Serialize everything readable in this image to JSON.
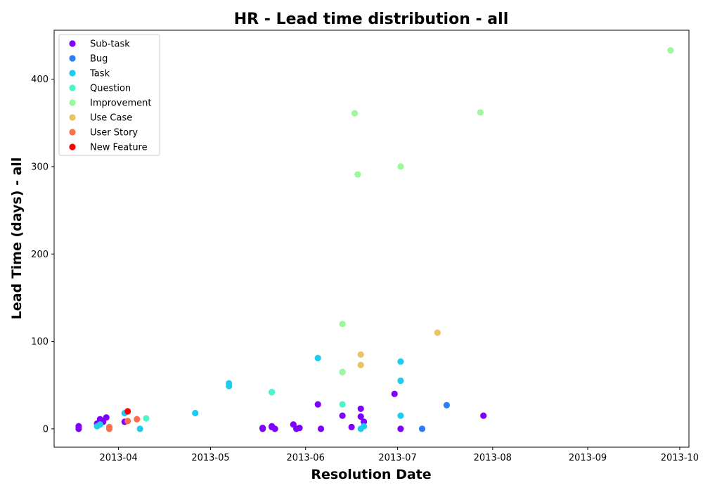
{
  "chart_data": {
    "type": "scatter",
    "title": "HR - Lead time distribution - all",
    "xlabel": "Resolution Date",
    "ylabel": "Lead Time (days) - all",
    "x_type": "date",
    "xlim": [
      "2013-03-11",
      "2013-10-04"
    ],
    "ylim": [
      -21,
      456
    ],
    "x_ticks": [
      "2013-04-01",
      "2013-05-01",
      "2013-06-01",
      "2013-07-01",
      "2013-08-01",
      "2013-09-01",
      "2013-10-01"
    ],
    "x_tick_labels": [
      "2013-04",
      "2013-05",
      "2013-06",
      "2013-07",
      "2013-08",
      "2013-09",
      "2013-10"
    ],
    "y_ticks": [
      0,
      100,
      200,
      300,
      400
    ],
    "y_tick_labels": [
      "0",
      "100",
      "200",
      "300",
      "400"
    ],
    "grid": false,
    "legend_position": "top-left",
    "series": [
      {
        "name": "Sub-task",
        "color": "#8000ff",
        "points": [
          {
            "x": "2013-03-19",
            "y": 0
          },
          {
            "x": "2013-03-19",
            "y": 3
          },
          {
            "x": "2013-03-25",
            "y": 6
          },
          {
            "x": "2013-03-26",
            "y": 11
          },
          {
            "x": "2013-03-27",
            "y": 8
          },
          {
            "x": "2013-03-28",
            "y": 13
          },
          {
            "x": "2013-04-03",
            "y": 8
          },
          {
            "x": "2013-05-18",
            "y": 0
          },
          {
            "x": "2013-05-18",
            "y": 1
          },
          {
            "x": "2013-05-21",
            "y": 3
          },
          {
            "x": "2013-05-21",
            "y": 2
          },
          {
            "x": "2013-05-22",
            "y": 0
          },
          {
            "x": "2013-05-28",
            "y": 5
          },
          {
            "x": "2013-05-29",
            "y": 0
          },
          {
            "x": "2013-05-30",
            "y": 1
          },
          {
            "x": "2013-06-05",
            "y": 28
          },
          {
            "x": "2013-06-06",
            "y": 0
          },
          {
            "x": "2013-06-13",
            "y": 15
          },
          {
            "x": "2013-06-16",
            "y": 2
          },
          {
            "x": "2013-06-19",
            "y": 23
          },
          {
            "x": "2013-06-19",
            "y": 14
          },
          {
            "x": "2013-06-20",
            "y": 8
          },
          {
            "x": "2013-06-30",
            "y": 40
          },
          {
            "x": "2013-07-02",
            "y": 0
          },
          {
            "x": "2013-07-29",
            "y": 15
          }
        ]
      },
      {
        "name": "Bug",
        "color": "#2c7ef7",
        "points": [
          {
            "x": "2013-07-09",
            "y": 0
          },
          {
            "x": "2013-07-17",
            "y": 27
          }
        ]
      },
      {
        "name": "Task",
        "color": "#1ccdef",
        "points": [
          {
            "x": "2013-03-25",
            "y": 3
          },
          {
            "x": "2013-03-26",
            "y": 5
          },
          {
            "x": "2013-04-03",
            "y": 18
          },
          {
            "x": "2013-04-08",
            "y": 0
          },
          {
            "x": "2013-04-26",
            "y": 18
          },
          {
            "x": "2013-05-07",
            "y": 52
          },
          {
            "x": "2013-05-07",
            "y": 49
          },
          {
            "x": "2013-05-21",
            "y": 42
          },
          {
            "x": "2013-06-05",
            "y": 81
          },
          {
            "x": "2013-06-13",
            "y": 65
          },
          {
            "x": "2013-06-19",
            "y": 0
          },
          {
            "x": "2013-06-20",
            "y": 3
          },
          {
            "x": "2013-07-02",
            "y": 77
          },
          {
            "x": "2013-07-02",
            "y": 55
          },
          {
            "x": "2013-07-02",
            "y": 15
          }
        ]
      },
      {
        "name": "Question",
        "color": "#4df6c8",
        "points": [
          {
            "x": "2013-04-10",
            "y": 12
          },
          {
            "x": "2013-05-21",
            "y": 42
          },
          {
            "x": "2013-06-13",
            "y": 28
          }
        ]
      },
      {
        "name": "Improvement",
        "color": "#9cf89b",
        "points": [
          {
            "x": "2013-06-13",
            "y": 120
          },
          {
            "x": "2013-06-13",
            "y": 65
          },
          {
            "x": "2013-06-17",
            "y": 361
          },
          {
            "x": "2013-06-18",
            "y": 291
          },
          {
            "x": "2013-07-02",
            "y": 300
          },
          {
            "x": "2013-07-28",
            "y": 362
          },
          {
            "x": "2013-09-28",
            "y": 433
          }
        ]
      },
      {
        "name": "Use Case",
        "color": "#eac365",
        "points": [
          {
            "x": "2013-06-19",
            "y": 85
          },
          {
            "x": "2013-06-19",
            "y": 73
          },
          {
            "x": "2013-07-14",
            "y": 110
          }
        ]
      },
      {
        "name": "User Story",
        "color": "#fe6e4c",
        "points": [
          {
            "x": "2013-03-29",
            "y": 0
          },
          {
            "x": "2013-03-29",
            "y": 2
          },
          {
            "x": "2013-04-04",
            "y": 9
          },
          {
            "x": "2013-04-07",
            "y": 11
          }
        ]
      },
      {
        "name": "New Feature",
        "color": "#ff0000",
        "points": [
          {
            "x": "2013-04-04",
            "y": 20
          }
        ]
      }
    ]
  }
}
